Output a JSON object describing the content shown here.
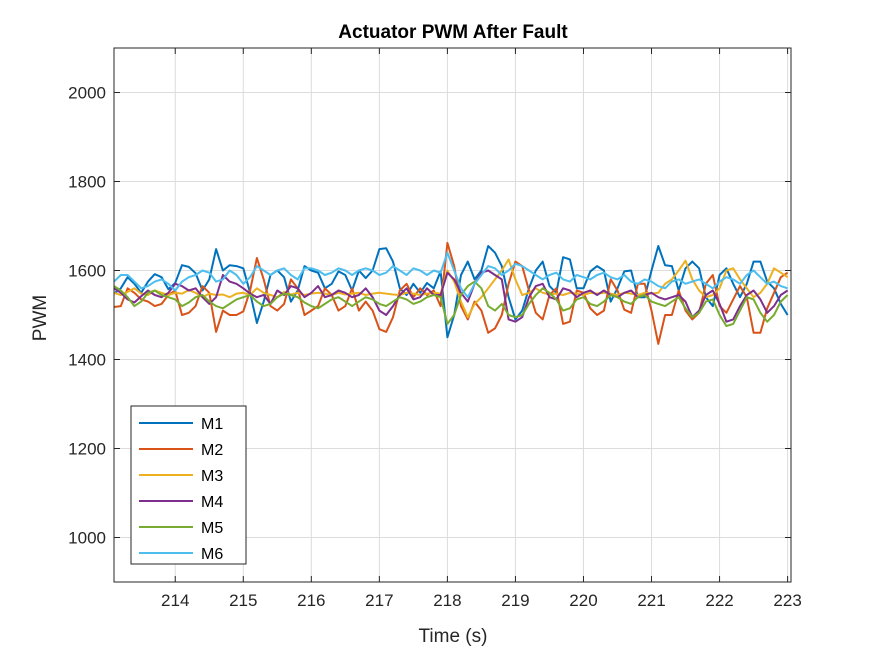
{
  "chart_data": {
    "type": "line",
    "title": "Actuator PWM After Fault",
    "xlabel": "Time (s)",
    "ylabel": "PWM",
    "xlim": [
      213.1,
      223.05
    ],
    "ylim": [
      900,
      2100
    ],
    "xticks": [
      214,
      215,
      216,
      217,
      218,
      219,
      220,
      221,
      222,
      223
    ],
    "yticks": [
      1000,
      1200,
      1400,
      1600,
      1800,
      2000
    ],
    "grid": true,
    "legend_position": "bottom-left",
    "x": [
      213.1,
      213.2,
      213.3,
      213.4,
      213.5,
      213.6,
      213.7,
      213.8,
      213.9,
      214.0,
      214.1,
      214.2,
      214.3,
      214.4,
      214.5,
      214.6,
      214.7,
      214.8,
      214.9,
      215.0,
      215.1,
      215.2,
      215.3,
      215.4,
      215.5,
      215.6,
      215.7,
      215.8,
      215.9,
      216.0,
      216.1,
      216.2,
      216.3,
      216.4,
      216.5,
      216.6,
      216.7,
      216.8,
      216.9,
      217.0,
      217.1,
      217.2,
      217.3,
      217.4,
      217.5,
      217.6,
      217.7,
      217.8,
      217.9,
      218.0,
      218.1,
      218.2,
      218.3,
      218.4,
      218.5,
      218.6,
      218.7,
      218.8,
      218.9,
      219.0,
      219.1,
      219.2,
      219.3,
      219.4,
      219.5,
      219.6,
      219.7,
      219.8,
      219.9,
      220.0,
      220.1,
      220.2,
      220.3,
      220.4,
      220.5,
      220.6,
      220.7,
      220.8,
      220.9,
      221.0,
      221.1,
      221.2,
      221.3,
      221.4,
      221.5,
      221.6,
      221.7,
      221.8,
      221.9,
      222.0,
      222.1,
      222.2,
      222.3,
      222.4,
      222.5,
      222.6,
      222.7,
      222.8,
      222.9,
      223.0
    ],
    "series": [
      {
        "name": "M1",
        "color": "#0072BD",
        "values": [
          1548,
          1560,
          1585,
          1570,
          1550,
          1575,
          1592,
          1585,
          1558,
          1572,
          1612,
          1608,
          1594,
          1555,
          1580,
          1648,
          1600,
          1612,
          1610,
          1605,
          1550,
          1482,
          1530,
          1590,
          1600,
          1585,
          1530,
          1555,
          1610,
          1600,
          1595,
          1560,
          1570,
          1598,
          1590,
          1555,
          1600,
          1583,
          1600,
          1648,
          1650,
          1620,
          1560,
          1545,
          1570,
          1550,
          1572,
          1560,
          1598,
          1450,
          1500,
          1590,
          1620,
          1580,
          1600,
          1655,
          1640,
          1610,
          1540,
          1490,
          1510,
          1560,
          1600,
          1620,
          1565,
          1550,
          1630,
          1625,
          1560,
          1560,
          1598,
          1610,
          1600,
          1530,
          1560,
          1598,
          1600,
          1540,
          1540,
          1600,
          1655,
          1612,
          1610,
          1555,
          1605,
          1620,
          1605,
          1540,
          1520,
          1590,
          1605,
          1570,
          1540,
          1570,
          1620,
          1620,
          1575,
          1560,
          1525,
          1500
        ]
      },
      {
        "name": "M2",
        "color": "#D95319",
        "values": [
          1518,
          1520,
          1560,
          1550,
          1535,
          1530,
          1520,
          1525,
          1545,
          1555,
          1500,
          1505,
          1520,
          1565,
          1550,
          1462,
          1510,
          1500,
          1500,
          1508,
          1555,
          1628,
          1580,
          1520,
          1510,
          1525,
          1580,
          1560,
          1500,
          1510,
          1520,
          1560,
          1545,
          1510,
          1520,
          1560,
          1510,
          1530,
          1510,
          1468,
          1462,
          1495,
          1555,
          1570,
          1540,
          1560,
          1545,
          1555,
          1520,
          1662,
          1610,
          1520,
          1490,
          1530,
          1510,
          1460,
          1470,
          1500,
          1570,
          1620,
          1610,
          1555,
          1505,
          1490,
          1545,
          1560,
          1480,
          1485,
          1555,
          1550,
          1515,
          1500,
          1510,
          1580,
          1555,
          1512,
          1505,
          1570,
          1570,
          1510,
          1435,
          1500,
          1500,
          1555,
          1510,
          1490,
          1505,
          1570,
          1590,
          1520,
          1505,
          1535,
          1565,
          1540,
          1460,
          1460,
          1515,
          1550,
          1585,
          1595
        ]
      },
      {
        "name": "M3",
        "color": "#EDB120",
        "values": [
          1550,
          1545,
          1552,
          1560,
          1548,
          1545,
          1555,
          1550,
          1545,
          1550,
          1548,
          1556,
          1550,
          1540,
          1548,
          1545,
          1546,
          1540,
          1548,
          1550,
          1545,
          1560,
          1550,
          1545,
          1540,
          1552,
          1546,
          1550,
          1545,
          1548,
          1550,
          1548,
          1545,
          1550,
          1546,
          1548,
          1550,
          1545,
          1548,
          1550,
          1548,
          1546,
          1545,
          1550,
          1548,
          1545,
          1548,
          1550,
          1548,
          1600,
          1575,
          1530,
          1495,
          1525,
          1540,
          1560,
          1580,
          1600,
          1625,
          1580,
          1545,
          1550,
          1560,
          1550,
          1546,
          1548,
          1545,
          1550,
          1548,
          1545,
          1550,
          1548,
          1550,
          1548,
          1545,
          1550,
          1548,
          1545,
          1550,
          1548,
          1550,
          1570,
          1580,
          1600,
          1622,
          1580,
          1555,
          1540,
          1545,
          1560,
          1600,
          1605,
          1580,
          1560,
          1540,
          1550,
          1570,
          1605,
          1595,
          1585
        ]
      },
      {
        "name": "M4",
        "color": "#7E2F8E",
        "values": [
          1560,
          1550,
          1535,
          1528,
          1542,
          1555,
          1545,
          1540,
          1550,
          1570,
          1565,
          1555,
          1560,
          1540,
          1525,
          1540,
          1590,
          1575,
          1570,
          1560,
          1548,
          1540,
          1545,
          1525,
          1555,
          1545,
          1565,
          1560,
          1540,
          1550,
          1565,
          1540,
          1545,
          1555,
          1550,
          1540,
          1545,
          1560,
          1540,
          1510,
          1500,
          1520,
          1545,
          1560,
          1535,
          1540,
          1560,
          1545,
          1545,
          1595,
          1580,
          1550,
          1530,
          1570,
          1595,
          1600,
          1590,
          1580,
          1490,
          1485,
          1495,
          1540,
          1565,
          1570,
          1540,
          1535,
          1560,
          1555,
          1540,
          1550,
          1555,
          1545,
          1555,
          1545,
          1540,
          1550,
          1555,
          1540,
          1545,
          1550,
          1540,
          1535,
          1540,
          1545,
          1530,
          1495,
          1510,
          1545,
          1555,
          1525,
          1485,
          1490,
          1520,
          1545,
          1555,
          1535,
          1505,
          1520,
          1545,
          1555
        ]
      },
      {
        "name": "M5",
        "color": "#77AC30",
        "values": [
          1565,
          1555,
          1540,
          1520,
          1530,
          1550,
          1555,
          1545,
          1540,
          1535,
          1520,
          1528,
          1540,
          1545,
          1530,
          1520,
          1515,
          1525,
          1535,
          1540,
          1545,
          1530,
          1520,
          1525,
          1540,
          1548,
          1545,
          1540,
          1528,
          1520,
          1515,
          1525,
          1535,
          1540,
          1530,
          1520,
          1530,
          1540,
          1535,
          1525,
          1520,
          1530,
          1540,
          1535,
          1525,
          1530,
          1540,
          1545,
          1540,
          1480,
          1500,
          1545,
          1565,
          1575,
          1560,
          1520,
          1510,
          1525,
          1500,
          1495,
          1500,
          1525,
          1545,
          1560,
          1550,
          1535,
          1510,
          1515,
          1535,
          1540,
          1525,
          1520,
          1530,
          1545,
          1540,
          1530,
          1525,
          1540,
          1545,
          1530,
          1525,
          1520,
          1530,
          1540,
          1515,
          1495,
          1505,
          1530,
          1535,
          1500,
          1475,
          1480,
          1510,
          1540,
          1535,
          1505,
          1485,
          1500,
          1530,
          1545
        ]
      },
      {
        "name": "M6",
        "color": "#4DBEEE",
        "values": [
          1575,
          1590,
          1590,
          1575,
          1560,
          1565,
          1575,
          1580,
          1570,
          1555,
          1575,
          1585,
          1590,
          1600,
          1595,
          1575,
          1580,
          1600,
          1590,
          1570,
          1585,
          1610,
          1600,
          1590,
          1600,
          1605,
          1590,
          1580,
          1605,
          1605,
          1600,
          1590,
          1595,
          1605,
          1600,
          1590,
          1600,
          1605,
          1600,
          1590,
          1595,
          1610,
          1600,
          1590,
          1605,
          1600,
          1590,
          1600,
          1595,
          1640,
          1600,
          1560,
          1540,
          1570,
          1590,
          1610,
          1605,
          1590,
          1600,
          1615,
          1610,
          1600,
          1590,
          1580,
          1590,
          1595,
          1580,
          1575,
          1590,
          1585,
          1580,
          1590,
          1595,
          1585,
          1580,
          1590,
          1575,
          1570,
          1580,
          1575,
          1565,
          1560,
          1575,
          1580,
          1570,
          1575,
          1580,
          1570,
          1560,
          1575,
          1585,
          1580,
          1570,
          1590,
          1600,
          1585,
          1570,
          1575,
          1565,
          1560
        ]
      }
    ]
  }
}
